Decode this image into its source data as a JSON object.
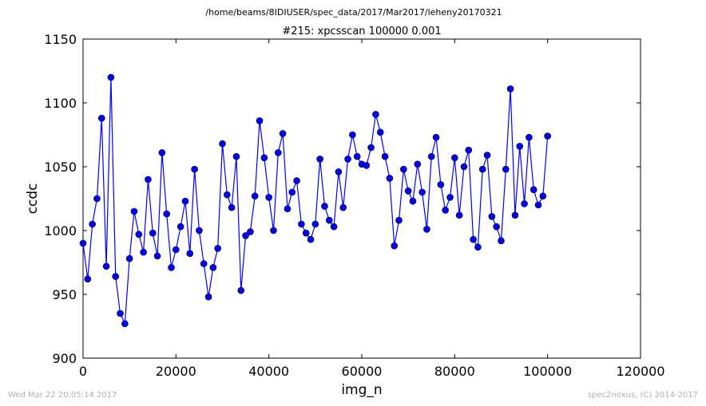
{
  "chart_data": {
    "type": "line",
    "subtitle": "/home/beams/8IDIUSER/spec_data/2017/Mar2017/leheny20170321",
    "title": "#215: xpcsscan 100000 0.001",
    "xlabel": "img_n",
    "ylabel": "ccdc",
    "xlim": [
      0,
      120000
    ],
    "ylim": [
      900,
      1150
    ],
    "xticks": [
      "0",
      "20000",
      "40000",
      "60000",
      "80000",
      "100000",
      "120000"
    ],
    "yticks": [
      "900",
      "950",
      "1000",
      "1050",
      "1100",
      "1150"
    ],
    "grid": false,
    "legend": "none",
    "series": [
      {
        "color": "#0000ff",
        "marker": "circle",
        "x": [
          0,
          1000,
          2000,
          3000,
          4000,
          5000,
          6000,
          7000,
          8000,
          9000,
          10000,
          11000,
          12000,
          13000,
          14000,
          15000,
          16000,
          17000,
          18000,
          19000,
          20000,
          21000,
          22000,
          23000,
          24000,
          25000,
          26000,
          27000,
          28000,
          29000,
          30000,
          31000,
          32000,
          33000,
          34000,
          35000,
          36000,
          37000,
          38000,
          39000,
          40000,
          41000,
          42000,
          43000,
          44000,
          45000,
          46000,
          47000,
          48000,
          49000,
          50000,
          51000,
          52000,
          53000,
          54000,
          55000,
          56000,
          57000,
          58000,
          59000,
          60000,
          61000,
          62000,
          63000,
          64000,
          65000,
          66000,
          67000,
          68000,
          69000,
          70000,
          71000,
          72000,
          73000,
          74000,
          75000,
          76000,
          77000,
          78000,
          79000,
          80000,
          81000,
          82000,
          83000,
          84000,
          85000,
          86000,
          87000,
          88000,
          89000,
          90000,
          91000,
          92000,
          93000,
          94000,
          95000,
          96000,
          97000,
          98000,
          99000,
          100000
        ],
        "y": [
          990,
          962,
          1005,
          1025,
          1088,
          972,
          1120,
          964,
          935,
          927,
          978,
          1015,
          997,
          983,
          1040,
          998,
          980,
          1061,
          1013,
          971,
          985,
          1003,
          1023,
          982,
          1048,
          1000,
          974,
          948,
          971,
          986,
          1068,
          1028,
          1018,
          1058,
          953,
          996,
          999,
          1027,
          1086,
          1057,
          1026,
          1000,
          1061,
          1076,
          1017,
          1030,
          1039,
          1005,
          998,
          993,
          1005,
          1056,
          1019,
          1008,
          1003,
          1046,
          1018,
          1056,
          1075,
          1058,
          1052,
          1051,
          1065,
          1091,
          1077,
          1058,
          1041,
          988,
          1008,
          1048,
          1031,
          1023,
          1052,
          1030,
          1001,
          1058,
          1073,
          1036,
          1016,
          1026,
          1057,
          1012,
          1050,
          1063,
          993,
          987,
          1048,
          1059,
          1011,
          1003,
          992,
          1048,
          1111,
          1012,
          1066,
          1021,
          1073,
          1032,
          1020,
          1027,
          1074
        ]
      }
    ]
  },
  "footer": {
    "timestamp": "Wed Mar 22 20:05:14 2017",
    "credit": "spec2nexus, (C) 2014-2017"
  }
}
